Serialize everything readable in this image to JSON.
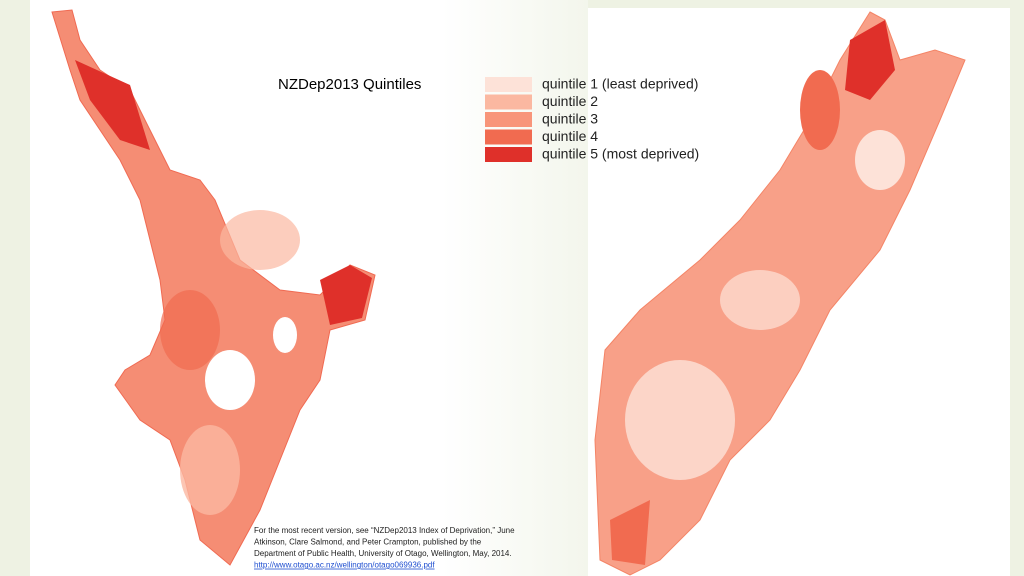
{
  "title": "NZDep2013 Quintiles",
  "legend": [
    {
      "label": "quintile 1 (least deprived)",
      "color": "#fde2d8"
    },
    {
      "label": "quintile 2",
      "color": "#fbb8a1"
    },
    {
      "label": "quintile 3",
      "color": "#f8957a"
    },
    {
      "label": "quintile 4",
      "color": "#f16b50"
    },
    {
      "label": "quintile 5 (most deprived)",
      "color": "#df302a"
    }
  ],
  "citation": {
    "lines": [
      "For the most recent version, see “NZDep2013 Index of Deprivation,” June",
      "Atkinson, Clare Salmond, and Peter Crampton, published by the",
      "Department of Public Health, University of Otago, Wellington, May, 2014."
    ],
    "link": "http://www.otago.ac.nz/wellington/otago069936.pdf"
  }
}
